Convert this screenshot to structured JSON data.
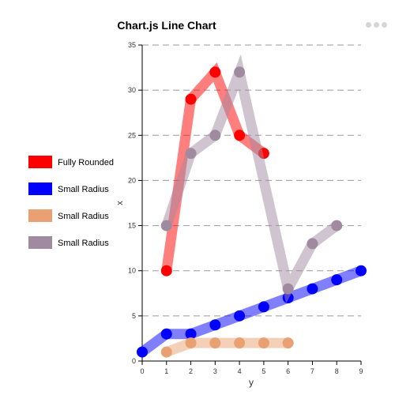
{
  "chart_data": {
    "type": "line",
    "title": "Chart.js Line Chart",
    "xlabel": "y",
    "ylabel": "x",
    "xlim": [
      0,
      9
    ],
    "ylim": [
      0,
      35
    ],
    "x_ticks": [
      0,
      1,
      2,
      3,
      4,
      5,
      6,
      7,
      8,
      9
    ],
    "y_ticks": [
      0,
      5,
      10,
      15,
      20,
      25,
      30,
      35
    ],
    "grid": "horizontal dashed",
    "legend_position": "left",
    "series": [
      {
        "name": "Fully Rounded",
        "color": "#ff0000",
        "points": [
          [
            1,
            10
          ],
          [
            2,
            29
          ],
          [
            3,
            32
          ],
          [
            4,
            25
          ],
          [
            5,
            23
          ]
        ]
      },
      {
        "name": "Small Radius",
        "color": "#0000ff",
        "points": [
          [
            0,
            1
          ],
          [
            1,
            3
          ],
          [
            2,
            3
          ],
          [
            3,
            4
          ],
          [
            4,
            5
          ],
          [
            5,
            6
          ],
          [
            6,
            7
          ],
          [
            7,
            8
          ],
          [
            8,
            9
          ],
          [
            9,
            10
          ]
        ]
      },
      {
        "name": "Small Radius",
        "color": "#e9a173",
        "points": [
          [
            1,
            1
          ],
          [
            2,
            2
          ],
          [
            3,
            2
          ],
          [
            4,
            2
          ],
          [
            5,
            2
          ],
          [
            6,
            2
          ]
        ]
      },
      {
        "name": "Small Radius",
        "color": "#a08aa0",
        "points": [
          [
            1,
            15
          ],
          [
            2,
            23
          ],
          [
            3,
            25
          ],
          [
            4,
            32
          ],
          [
            6,
            8
          ],
          [
            7,
            13
          ],
          [
            8,
            15
          ]
        ]
      }
    ]
  }
}
